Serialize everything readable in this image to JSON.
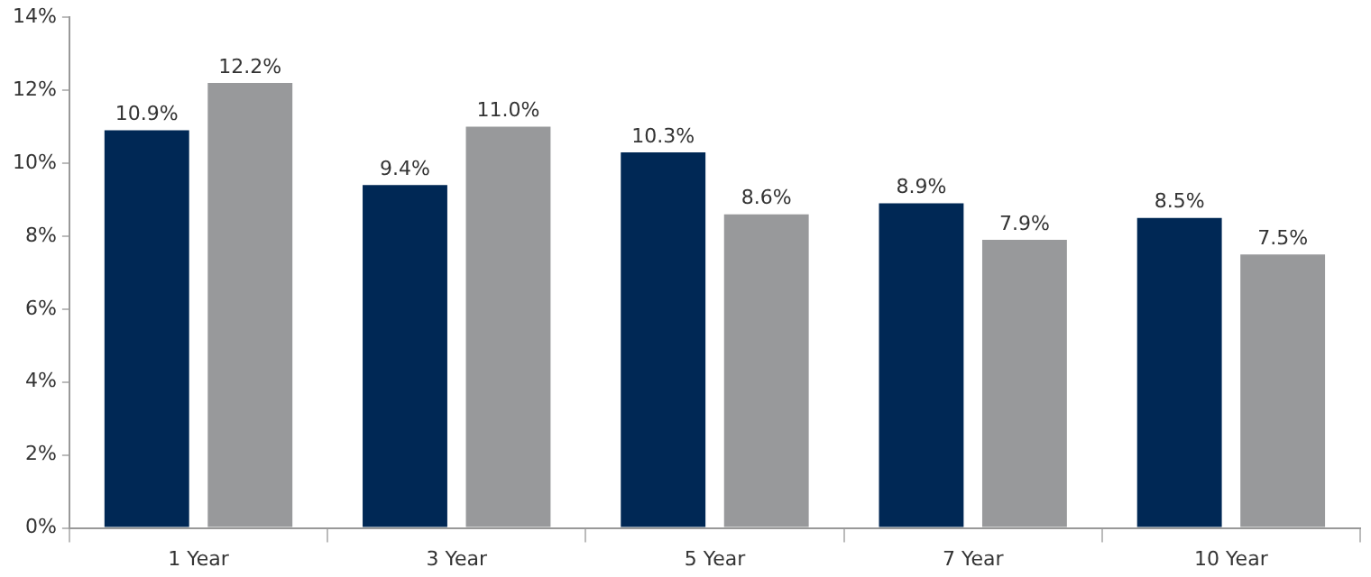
{
  "chart_data": {
    "type": "bar",
    "categories": [
      "1 Year",
      "3 Year",
      "5 Year",
      "7 Year",
      "10 Year"
    ],
    "series": [
      {
        "color": "#002855",
        "values": [
          10.9,
          9.4,
          10.3,
          8.9,
          8.5
        ],
        "value_labels": [
          "10.9%",
          "9.4%",
          "10.3%",
          "8.9%",
          "8.5%"
        ]
      },
      {
        "color": "#98999b",
        "values": [
          12.2,
          11.0,
          8.6,
          7.9,
          7.5
        ],
        "value_labels": [
          "12.2%",
          "11.0%",
          "8.6%",
          "7.9%",
          "7.5%"
        ]
      }
    ],
    "ylim": [
      0,
      14
    ],
    "yticks": [
      {
        "value": 0,
        "label": "0%"
      },
      {
        "value": 2,
        "label": "2%"
      },
      {
        "value": 4,
        "label": "4%"
      },
      {
        "value": 6,
        "label": "6%"
      },
      {
        "value": 8,
        "label": "8%"
      },
      {
        "value": 10,
        "label": "10%"
      },
      {
        "value": 12,
        "label": "12%"
      },
      {
        "value": 14,
        "label": "14%"
      }
    ],
    "grid": false,
    "legend": false
  }
}
